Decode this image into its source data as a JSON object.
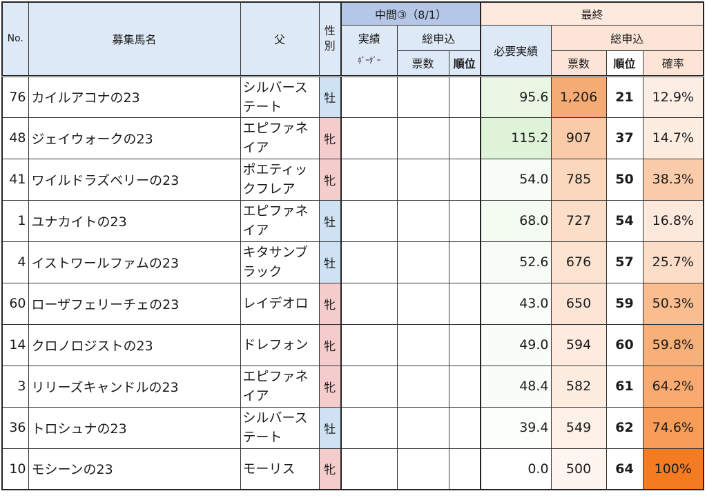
{
  "header": {
    "no": "No.",
    "name": "募集馬名",
    "sire": "父",
    "sex": "性別",
    "mid_group": "中間③（8/1）",
    "mid_border_line1": "実績",
    "mid_border_line2": "ﾎﾞｰﾀﾞｰ",
    "mid_total": "総申込",
    "mid_votes": "票数",
    "mid_rank": "順位",
    "final_group": "最終",
    "final_required": "必要実績",
    "final_total": "総申込",
    "final_votes": "票数",
    "final_rank": "順位",
    "final_rate": "確率"
  },
  "colors": {
    "sex_colors": {
      "牡": "#cfe2f3",
      "牝": "#f4cccc"
    },
    "required_scale": [
      "#ffffff",
      "#dff3d8"
    ],
    "votes_scale": [
      "#fef5ef",
      "#f5ac74"
    ],
    "rate_scale": [
      "#fdeee4",
      "#f47b20"
    ]
  },
  "rows": [
    {
      "no": "76",
      "name": "カイルアコナの23",
      "sire": "シルバーステート",
      "sex": "牡",
      "required": "95.6",
      "votes": "1,206",
      "rank": "21",
      "rate": "12.9%"
    },
    {
      "no": "48",
      "name": "ジェイウォークの23",
      "sire": "エピファネイア",
      "sex": "牝",
      "required": "115.2",
      "votes": "907",
      "rank": "37",
      "rate": "14.7%"
    },
    {
      "no": "41",
      "name": "ワイルドラズベリーの23",
      "sire": "ポエティックフレア",
      "sex": "牝",
      "required": "54.0",
      "votes": "785",
      "rank": "50",
      "rate": "38.3%"
    },
    {
      "no": "1",
      "name": "ユナカイトの23",
      "sire": "エピファネイア",
      "sex": "牡",
      "required": "68.0",
      "votes": "727",
      "rank": "54",
      "rate": "16.8%"
    },
    {
      "no": "4",
      "name": "イストワールファムの23",
      "sire": "キタサンブラック",
      "sex": "牡",
      "required": "52.6",
      "votes": "676",
      "rank": "57",
      "rate": "25.7%"
    },
    {
      "no": "60",
      "name": "ローザフェリーチェの23",
      "sire": "レイデオロ",
      "sex": "牝",
      "required": "43.0",
      "votes": "650",
      "rank": "59",
      "rate": "50.3%"
    },
    {
      "no": "14",
      "name": "クロノロジストの23",
      "sire": "ドレフォン",
      "sex": "牝",
      "required": "49.0",
      "votes": "594",
      "rank": "60",
      "rate": "59.8%"
    },
    {
      "no": "3",
      "name": "リリーズキャンドルの23",
      "sire": "エピファネイア",
      "sex": "牝",
      "required": "48.4",
      "votes": "582",
      "rank": "61",
      "rate": "64.2%"
    },
    {
      "no": "36",
      "name": "トロシュナの23",
      "sire": "シルバーステート",
      "sex": "牡",
      "required": "39.4",
      "votes": "549",
      "rank": "62",
      "rate": "74.6%"
    },
    {
      "no": "10",
      "name": "モシーンの23",
      "sire": "モーリス",
      "sex": "牝",
      "required": "0.0",
      "votes": "500",
      "rank": "64",
      "rate": "100%"
    }
  ]
}
